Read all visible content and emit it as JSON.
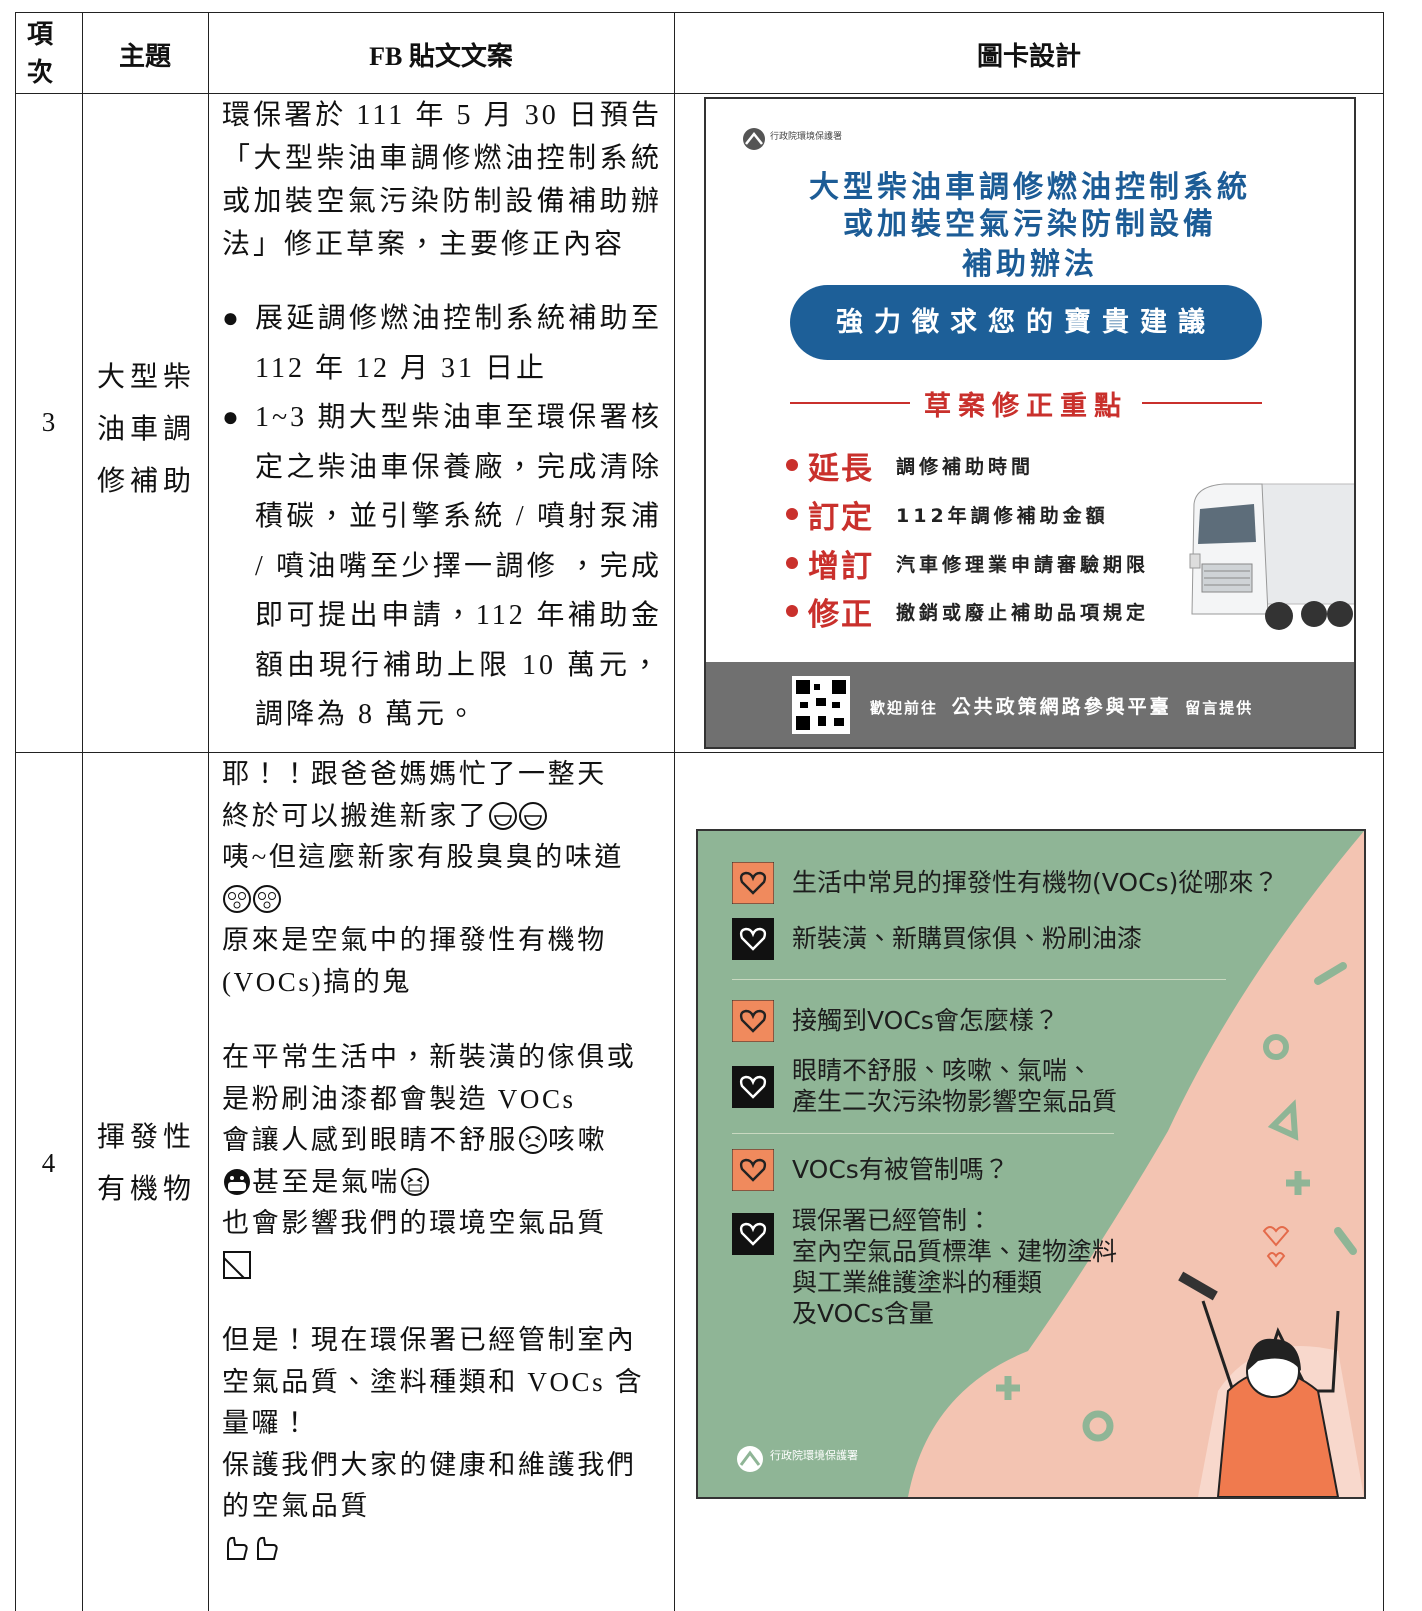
{
  "header": {
    "columns": [
      "項次",
      "主題",
      "FB 貼文文案",
      "圖卡設計"
    ]
  },
  "rows": [
    {
      "item": "3",
      "topic": "大型柴油車調修補助",
      "post": {
        "intro": "環保署於 111 年 5 月 30 日預告「大型柴油車調修燃油控制系統或加裝空氣污染防制設備補助辦法」修正草案，主要修正內容",
        "bullets": [
          "展延調修燃油控制系統補助至 112 年 12 月 31 日止",
          "1~3 期大型柴油車至環保署核定之柴油車保養廠，完成清除積碳，並引擎系統 / 噴射泵浦 / 噴油嘴至少擇一調修 ，完成即可提出申請，112 年補助金額由現行補助上限 10 萬元，調降為 8 萬元。"
        ]
      },
      "card": {
        "agency": "行政院環境保護署",
        "title": [
          "大型柴油車調修燃油控制系統",
          "或加裝空氣污染防制設備",
          "補助辦法"
        ],
        "button": "強力徵求您的寶貴建議",
        "section": "草案修正重點",
        "points": [
          {
            "key": "延長",
            "text": "調修補助時間"
          },
          {
            "key": "訂定",
            "text": "112年調修補助金額"
          },
          {
            "key": "增訂",
            "text": "汽車修理業申請審驗期限"
          },
          {
            "key": "修正",
            "text": "撤銷或廢止補助品項規定"
          }
        ],
        "footer": {
          "prefix": "歡迎前往",
          "platform": "公共政策網路參與平臺",
          "suffix": "留言提供"
        }
      }
    },
    {
      "item": "4",
      "topic": "揮發性有機物",
      "post": {
        "paragraphs": [
          [
            "耶！！跟爸爸媽媽忙了一整天",
            "終於可以搬進新家了",
            "咦~但這麼新家有股臭臭的味道",
            "原來是空氣中的揮發性有機物(VOCs)搞的鬼"
          ],
          [
            "在平常生活中，新裝潢的傢俱或是粉刷油漆都會製造 VOCs",
            "會讓人感到眼睛不舒服",
            "咳嗽",
            "甚至是氣喘",
            "也會影響我們的環境空氣品質"
          ],
          [
            "但是！現在環保署已經管制室內空氣品質、塗料種類和 VOCs 含量囉！",
            "保護我們大家的健康和維護我們的空氣品質"
          ]
        ]
      },
      "card": {
        "qa": [
          {
            "q": "生活中常見的揮發性有機物(VOCs)從哪來？",
            "a": [
              "新裝潢、新購買傢俱、粉刷油漆"
            ]
          },
          {
            "q": "接觸到VOCs會怎麼樣？",
            "a": [
              "眼睛不舒服、咳嗽、氣喘、",
              "產生二次污染物影響空氣品質"
            ]
          },
          {
            "q": "VOCs有被管制嗎？",
            "a": [
              "環保署已經管制：",
              "室內空氣品質標準、建物塗料",
              "與工業維護塗料的種類",
              "及VOCs含量"
            ]
          }
        ],
        "agency": "行政院環境保護署"
      }
    }
  ]
}
